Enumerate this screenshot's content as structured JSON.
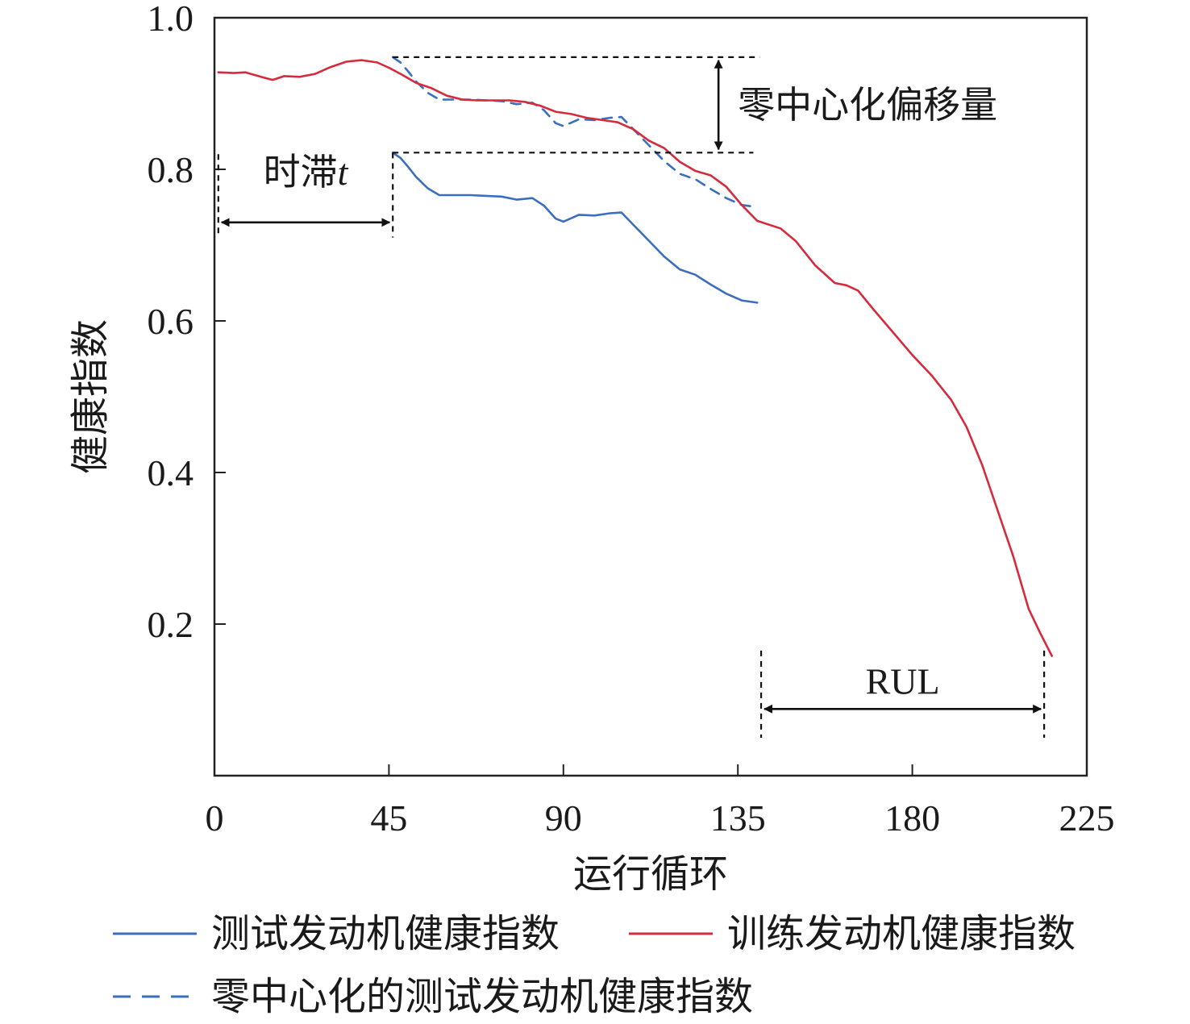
{
  "chart_data": {
    "type": "line",
    "xlabel": "运行循环",
    "ylabel": "健康指数",
    "xlim": [
      0,
      225
    ],
    "ylim": [
      0.0,
      1.0
    ],
    "x_ticks": [
      0,
      45,
      90,
      135,
      180,
      225
    ],
    "x_tick_labels": [
      "0",
      "45",
      "90",
      "135",
      "180",
      "225"
    ],
    "y_ticks": [
      0.2,
      0.4,
      0.6,
      0.8,
      1.0
    ],
    "y_tick_labels": [
      "0.2",
      "0.4",
      "0.6",
      "0.8",
      "1.0"
    ],
    "grid": false,
    "legend_position": "bottom",
    "series": [
      {
        "name": "测试发动机健康指数",
        "color": "#3a6fbf",
        "style": "solid",
        "x": [
          46,
          48,
          50,
          52,
          55,
          58,
          62,
          66,
          70,
          74,
          78,
          82,
          85,
          88,
          90,
          94,
          98,
          102,
          105,
          108,
          112,
          116,
          120,
          124,
          128,
          132,
          136,
          140
        ],
        "y": [
          0.822,
          0.815,
          0.803,
          0.79,
          0.775,
          0.766,
          0.766,
          0.766,
          0.765,
          0.764,
          0.76,
          0.762,
          0.752,
          0.735,
          0.731,
          0.74,
          0.739,
          0.742,
          0.743,
          0.727,
          0.706,
          0.685,
          0.668,
          0.661,
          0.648,
          0.636,
          0.627,
          0.624
        ]
      },
      {
        "name": "训练发动机健康指数",
        "color": "#d62b3c",
        "style": "solid",
        "x": [
          1,
          5,
          8,
          12,
          15,
          18,
          22,
          26,
          30,
          34,
          38,
          42,
          45,
          48,
          52,
          56,
          60,
          64,
          68,
          72,
          76,
          80,
          84,
          88,
          92,
          96,
          100,
          104,
          108,
          112,
          116,
          120,
          124,
          128,
          132,
          136,
          140,
          146,
          150,
          155,
          160,
          163,
          166,
          170,
          175,
          180,
          185,
          190,
          194,
          198,
          202,
          206,
          210,
          213,
          215,
          216
        ],
        "y": [
          0.928,
          0.927,
          0.928,
          0.922,
          0.918,
          0.923,
          0.922,
          0.926,
          0.935,
          0.942,
          0.944,
          0.941,
          0.934,
          0.926,
          0.914,
          0.907,
          0.897,
          0.892,
          0.891,
          0.891,
          0.891,
          0.889,
          0.884,
          0.876,
          0.873,
          0.868,
          0.865,
          0.862,
          0.853,
          0.838,
          0.828,
          0.81,
          0.798,
          0.792,
          0.777,
          0.753,
          0.732,
          0.722,
          0.705,
          0.673,
          0.65,
          0.647,
          0.64,
          0.615,
          0.585,
          0.555,
          0.528,
          0.496,
          0.46,
          0.41,
          0.35,
          0.29,
          0.22,
          0.188,
          0.168,
          0.158
        ]
      },
      {
        "name": "零中心化的测试发动机健康指数",
        "color": "#3a6fbf",
        "style": "dashed",
        "x": [
          46,
          48,
          50,
          52,
          55,
          58,
          62,
          66,
          70,
          74,
          78,
          82,
          85,
          88,
          90,
          94,
          98,
          102,
          105,
          108,
          112,
          116,
          120,
          124,
          128,
          132,
          136,
          140
        ],
        "y": [
          0.948,
          0.941,
          0.929,
          0.916,
          0.901,
          0.892,
          0.892,
          0.892,
          0.891,
          0.89,
          0.886,
          0.888,
          0.878,
          0.861,
          0.857,
          0.866,
          0.865,
          0.868,
          0.869,
          0.853,
          0.832,
          0.811,
          0.794,
          0.787,
          0.774,
          0.762,
          0.753,
          0.75
        ]
      }
    ],
    "annotations": {
      "time_lag_label": "时滞",
      "time_lag_var": "t",
      "time_lag_x_range": [
        1,
        46
      ],
      "time_lag_arrow_y": 0.73,
      "offset_label": "零中心化偏移量",
      "offset_top_y": 0.948,
      "offset_bottom_y": 0.822,
      "offset_line_x_range": [
        46,
        139
      ],
      "offset_arrow_x": 130,
      "rul_label": "RUL",
      "rul_x_range": [
        141,
        214
      ],
      "rul_arrow_y": 0.088,
      "rul_label_y": 0.125
    }
  }
}
